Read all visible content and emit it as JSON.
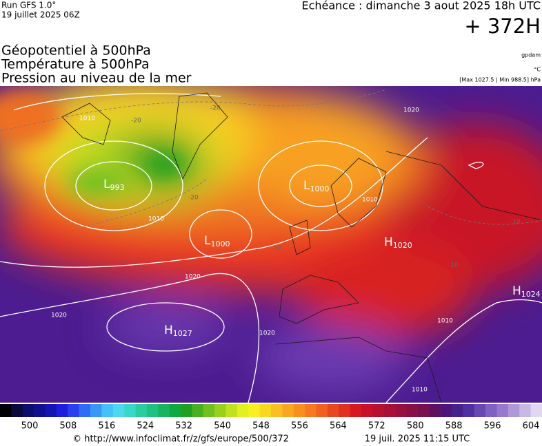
{
  "header": {
    "run": "Run GFS 1.0°",
    "date": "19 juillet 2025 06Z",
    "echeance": "Echéance : dimanche 3 aout 2025 18h UTC",
    "lead": "+ 372H",
    "fields": [
      "Géopotentiel à 500hPa",
      "Température à 500hPa",
      "Pression au niveau de la mer"
    ],
    "units": [
      "gpdam",
      "°C"
    ],
    "pressure_range": "[Max 1027.5 | Min 988.5] hPa"
  },
  "map": {
    "centers": [
      {
        "letter": "L",
        "value": "993"
      },
      {
        "letter": "L",
        "value": "1000"
      },
      {
        "letter": "L",
        "value": "1000"
      },
      {
        "letter": "H",
        "value": "1020"
      },
      {
        "letter": "H",
        "value": "1027"
      },
      {
        "letter": "H",
        "value": "1024"
      }
    ],
    "isobar_labels": [
      "1010",
      "1010",
      "1020",
      "1020",
      "1020",
      "1020",
      "1010",
      "1010",
      "1010"
    ],
    "temp_labels": [
      "-20",
      "-20",
      "-20",
      "-10",
      "-10",
      "-10"
    ]
  },
  "colorbar": {
    "colors": [
      "#000000",
      "#0a0a3c",
      "#0d0d6e",
      "#10108f",
      "#1414b4",
      "#1e1edc",
      "#2840f0",
      "#2f6cf5",
      "#3a96f7",
      "#46c0f8",
      "#4ed8f0",
      "#38d8c8",
      "#2ccca0",
      "#20c080",
      "#18b460",
      "#10a840",
      "#20a020",
      "#48b020",
      "#70c020",
      "#98d020",
      "#c0e020",
      "#e0f020",
      "#f8f020",
      "#f8d820",
      "#f8c020",
      "#f8a820",
      "#f89020",
      "#f87820",
      "#f06020",
      "#e84820",
      "#e03020",
      "#d81820",
      "#c81028",
      "#b81030",
      "#a81038",
      "#981040",
      "#881048",
      "#781050",
      "#601060",
      "#501478",
      "#48208c",
      "#5030a0",
      "#6848b0",
      "#8060c0",
      "#9878cc",
      "#b098d8",
      "#c8b8e4",
      "#e0d8f0"
    ],
    "ticks": [
      500,
      508,
      516,
      524,
      532,
      540,
      548,
      556,
      564,
      572,
      580,
      588,
      596,
      604
    ]
  },
  "footer": {
    "url": "© http://www.infoclimat.fr/z/gfs/europe/500/372",
    "timestamp": "19 juil. 2025 11:15 UTC"
  }
}
